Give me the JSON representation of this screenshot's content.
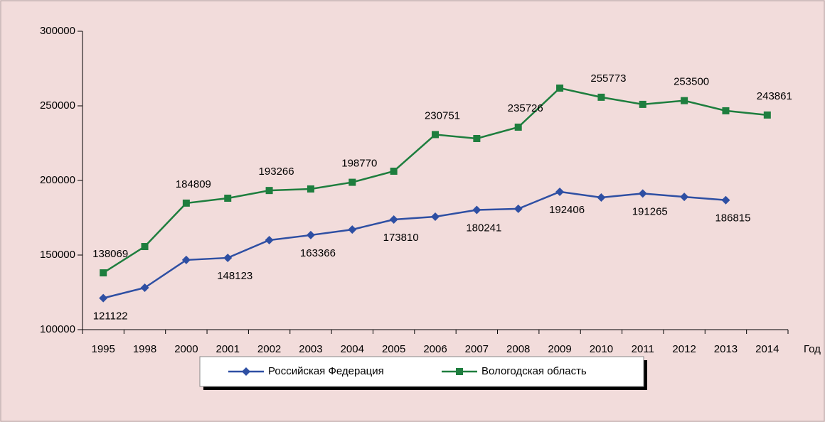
{
  "chart_data": {
    "type": "line",
    "x_label": "Год",
    "categories": [
      "1995",
      "1998",
      "2000",
      "2001",
      "2002",
      "2003",
      "2004",
      "2005",
      "2006",
      "2007",
      "2008",
      "2009",
      "2010",
      "2011",
      "2012",
      "2013",
      "2014"
    ],
    "series": [
      {
        "name": "Российская Федерация",
        "color": "#2e4fa3",
        "marker": "diamond",
        "label_side": "below",
        "values": [
          121122,
          128100,
          146700,
          148123,
          160000,
          163366,
          167100,
          173810,
          175700,
          180241,
          181000,
          192406,
          188600,
          191265,
          189000,
          186815,
          null
        ],
        "value_labels": [
          "121122",
          null,
          null,
          "148123",
          null,
          "163366",
          null,
          "173810",
          null,
          "180241",
          null,
          "192406",
          null,
          "191265",
          null,
          "186815",
          null
        ]
      },
      {
        "name": "Вологодская область",
        "color": "#1e7e3e",
        "marker": "square",
        "label_side": "above",
        "values": [
          138069,
          155700,
          184809,
          188100,
          193266,
          194300,
          198770,
          206200,
          230751,
          228100,
          235726,
          261900,
          255773,
          251000,
          253500,
          246700,
          243861
        ],
        "value_labels": [
          "138069",
          null,
          "184809",
          null,
          "193266",
          null,
          "198770",
          null,
          "230751",
          null,
          "235726",
          null,
          "255773",
          null,
          "253500",
          null,
          "243861"
        ]
      }
    ],
    "ylim": [
      100000,
      300000
    ],
    "yticks": [
      100000,
      150000,
      200000,
      250000,
      300000
    ],
    "grid": false,
    "legend": "bottom"
  }
}
